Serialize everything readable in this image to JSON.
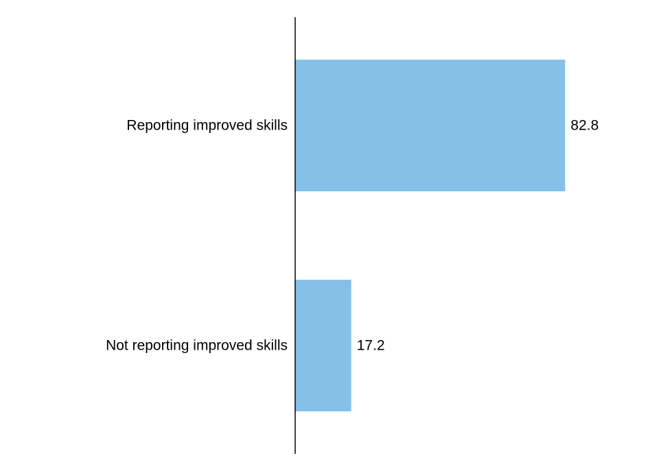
{
  "chart_data": {
    "type": "bar",
    "orientation": "horizontal",
    "categories": [
      "Reporting improved skills",
      "Not reporting improved skills"
    ],
    "values": [
      82.8,
      17.2
    ],
    "value_labels": [
      "82.8",
      "17.2"
    ],
    "xlim": [
      0,
      100
    ],
    "grid": false,
    "legend": "none",
    "bar_color": "#85C0E9",
    "axis_color": "#000000"
  }
}
